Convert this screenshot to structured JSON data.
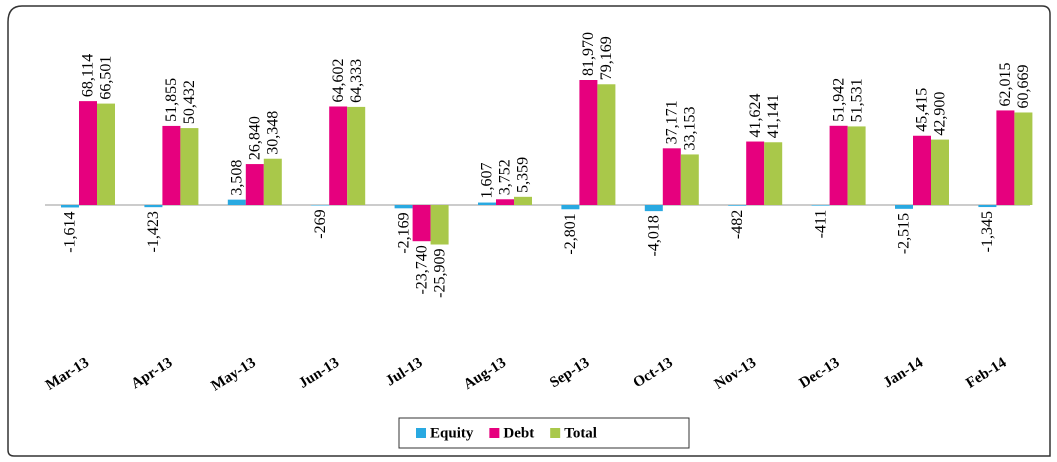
{
  "chart_data": {
    "type": "bar",
    "categories": [
      "Mar-13",
      "Apr-13",
      "May-13",
      "Jun-13",
      "Jul-13",
      "Aug-13",
      "Sep-13",
      "Oct-13",
      "Nov-13",
      "Dec-13",
      "Jan-14",
      "Feb-14"
    ],
    "series": [
      {
        "name": "Equity",
        "color": "#29a9e1",
        "values": [
          -1614,
          -1423,
          3508,
          -269,
          -2169,
          1607,
          -2801,
          -4018,
          -482,
          -411,
          -2515,
          -1345
        ],
        "value_labels": [
          "-1,614",
          "-1,423",
          "3,508",
          "-269",
          "-2,169",
          "1,607",
          "-2,801",
          "-4,018",
          "-482",
          "-411",
          "-2,515",
          "-1,345"
        ]
      },
      {
        "name": "Debt",
        "color": "#e6007e",
        "values": [
          68114,
          51855,
          26840,
          64602,
          -23740,
          3752,
          81970,
          37171,
          41624,
          51942,
          45415,
          62015
        ],
        "value_labels": [
          "68,114",
          "51,855",
          "26,840",
          "64,602",
          "-23,740",
          "3,752",
          "81,970",
          "37,171",
          "41,624",
          "51,942",
          "45,415",
          "62,015"
        ]
      },
      {
        "name": "Total",
        "color": "#a9c84a",
        "values": [
          66501,
          50432,
          30348,
          64333,
          -25909,
          5359,
          79169,
          33153,
          41141,
          51531,
          42900,
          60669
        ],
        "value_labels": [
          "66,501",
          "50,432",
          "30,348",
          "64,333",
          "-25,909",
          "5,359",
          "79,169",
          "33,153",
          "41,141",
          "51,531",
          "42,900",
          "60,669"
        ]
      }
    ],
    "legend": "bottom"
  }
}
